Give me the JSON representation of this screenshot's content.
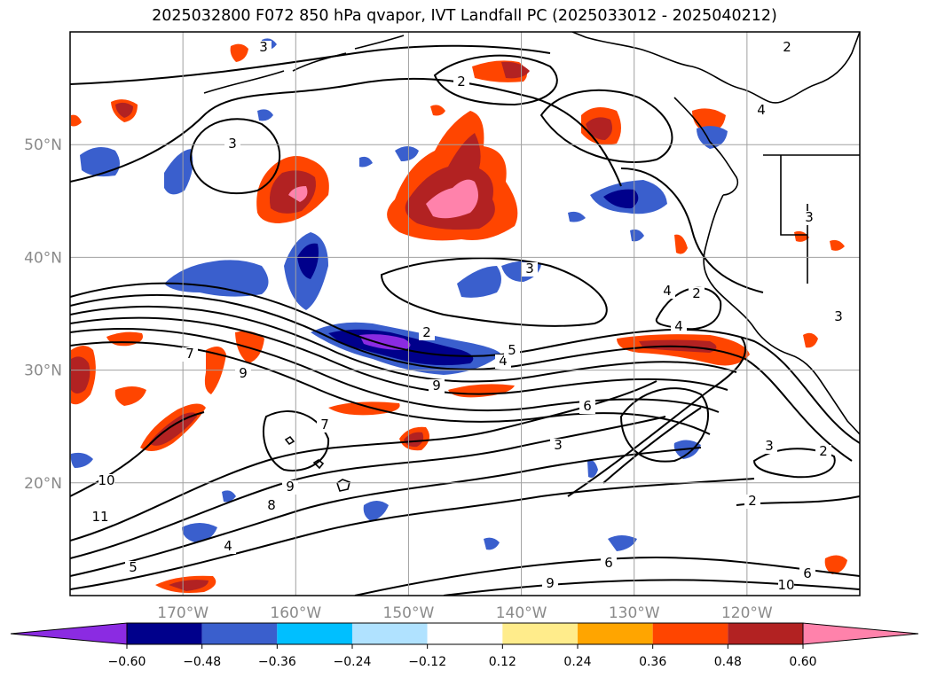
{
  "title": "2025032800 F072 850 hPa qvapor, IVT Landfall PC (2025033012 - 2025040212)",
  "map": {
    "lon_range": [
      -180,
      -110
    ],
    "lat_range": [
      10,
      60
    ],
    "grid_lons": [
      -170,
      -160,
      -150,
      -140,
      -130,
      -120,
      -110
    ],
    "grid_lats": [
      20,
      30,
      40,
      50
    ],
    "lon_labels": [
      "170°W",
      "160°W",
      "150°W",
      "140°W",
      "130°W",
      "120°W"
    ],
    "lat_labels": [
      "20°N",
      "30°N",
      "40°N",
      "50°N"
    ],
    "contour_labels": [
      "2",
      "3",
      "4",
      "5",
      "6",
      "7",
      "8",
      "9",
      "10",
      "11"
    ]
  },
  "colorbar": {
    "tick_labels": [
      "−0.60",
      "−0.48",
      "−0.36",
      "−0.24",
      "−0.12",
      "0.12",
      "0.24",
      "0.36",
      "0.48",
      "0.60"
    ],
    "colors": [
      "#8b2be2",
      "#00008b",
      "#3a5fcd",
      "#00bfff",
      "#b0e2ff",
      "#ffffff",
      "#ffec8b",
      "#ffa500",
      "#ff4500",
      "#b22222",
      "#ff82ab",
      "#ff82ab"
    ]
  }
}
